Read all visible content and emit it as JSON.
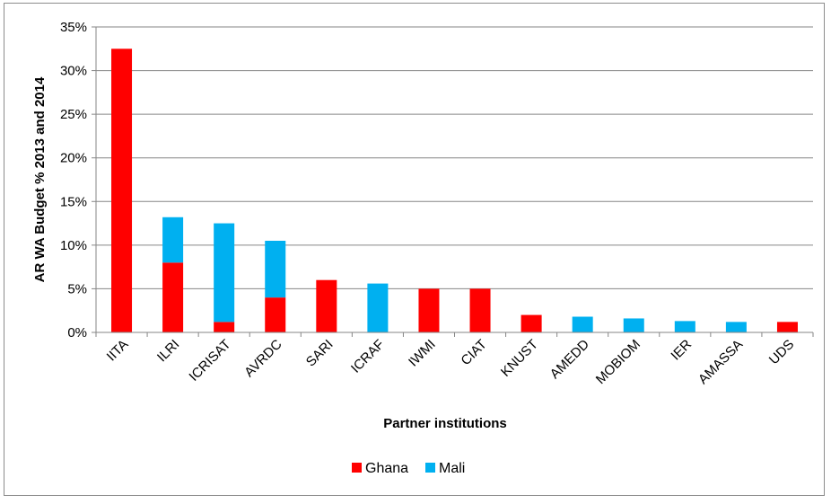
{
  "chart_data": {
    "type": "bar",
    "stacked": true,
    "categories": [
      "IITA",
      "ILRI",
      "ICRISAT",
      "AVRDC",
      "SARI",
      "ICRAF",
      "IWMI",
      "CIAT",
      "KNUST",
      "AMEDD",
      "MOBIOM",
      "IER",
      "AMASSA",
      "UDS"
    ],
    "series": [
      {
        "name": "Ghana",
        "color": "#ff0000",
        "values": [
          32.5,
          8.0,
          1.2,
          4.0,
          6.0,
          0,
          5.0,
          5.0,
          2.0,
          0,
          0,
          0,
          0,
          1.2
        ]
      },
      {
        "name": "Mali",
        "color": "#00b0f0",
        "values": [
          0,
          5.2,
          11.3,
          6.5,
          0,
          5.6,
          0,
          0,
          0,
          1.8,
          1.6,
          1.3,
          1.2,
          0
        ]
      }
    ],
    "title": "",
    "xlabel": "Partner institutions",
    "ylabel": "AR WA Budget % 2013 and 2014",
    "ylim": [
      0,
      35
    ],
    "yticks": [
      0,
      5,
      10,
      15,
      20,
      25,
      30,
      35
    ],
    "ytick_labels": [
      "0%",
      "5%",
      "10%",
      "15%",
      "20%",
      "25%",
      "30%",
      "35%"
    ],
    "grid": true,
    "legend_position": "bottom"
  }
}
